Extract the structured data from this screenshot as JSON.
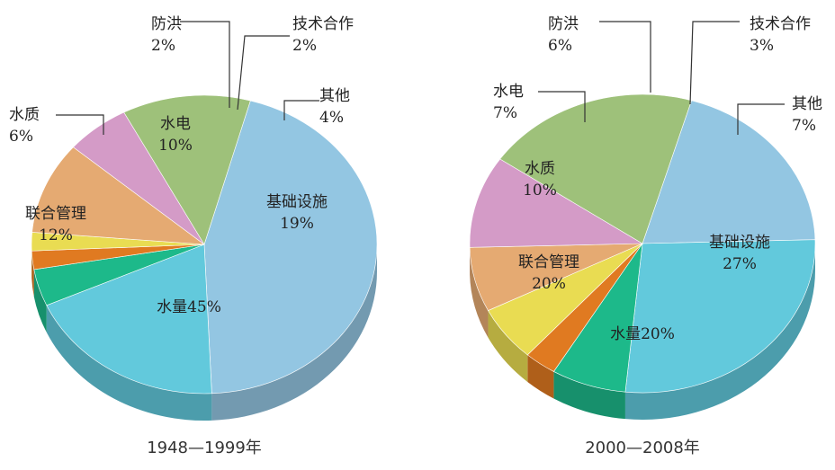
{
  "chart_data": [
    {
      "type": "pie",
      "title": "1948—1999年",
      "slices": [
        {
          "label": "水量",
          "value": 45,
          "display": "45%",
          "color": "#93c6e2"
        },
        {
          "label": "基础设施",
          "value": 19,
          "display": "19%",
          "color": "#62c9dc"
        },
        {
          "label": "其他",
          "value": 4,
          "display": "4%",
          "color": "#1db98a"
        },
        {
          "label": "技术合作",
          "value": 2,
          "display": "2%",
          "color": "#e07a21"
        },
        {
          "label": "防洪",
          "value": 2,
          "display": "2%",
          "color": "#e9dc52"
        },
        {
          "label": "水电",
          "value": 10,
          "display": "10%",
          "color": "#e5aa72"
        },
        {
          "label": "水质",
          "value": 6,
          "display": "6%",
          "color": "#d49bc7"
        },
        {
          "label": "联合管理",
          "value": 12,
          "display": "12%",
          "color": "#9ec17a"
        }
      ]
    },
    {
      "type": "pie",
      "title": "2000—2008年",
      "slices": [
        {
          "label": "水量",
          "value": 20,
          "display": "20%",
          "color": "#93c6e2"
        },
        {
          "label": "基础设施",
          "value": 27,
          "display": "27%",
          "color": "#62c9dc"
        },
        {
          "label": "其他",
          "value": 7,
          "display": "7%",
          "color": "#1db98a"
        },
        {
          "label": "技术合作",
          "value": 3,
          "display": "3%",
          "color": "#e07a21"
        },
        {
          "label": "防洪",
          "value": 6,
          "display": "6%",
          "color": "#e9dc52"
        },
        {
          "label": "水电",
          "value": 7,
          "display": "7%",
          "color": "#e5aa72"
        },
        {
          "label": "水质",
          "value": 10,
          "display": "10%",
          "color": "#d49bc7"
        },
        {
          "label": "联合管理",
          "value": 20,
          "display": "20%",
          "color": "#9ec17a"
        }
      ]
    }
  ]
}
